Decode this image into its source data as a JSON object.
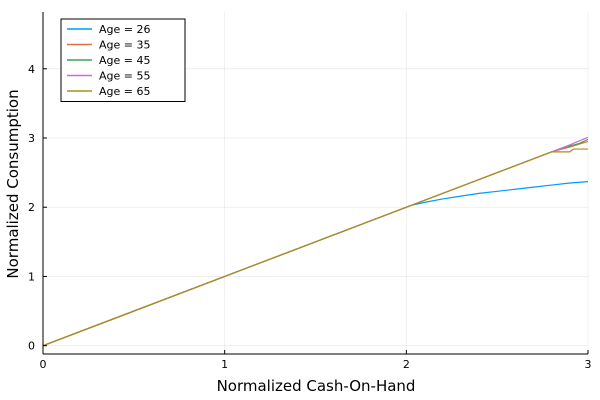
{
  "chart_data": {
    "type": "line",
    "title": "",
    "xlabel": "Normalized Cash-On-Hand",
    "ylabel": "Normalized Consumption",
    "xlim": [
      0,
      3
    ],
    "ylim": [
      -0.12,
      4.82
    ],
    "xticks": [
      0,
      1,
      2,
      3
    ],
    "yticks": [
      0,
      1,
      2,
      3,
      4
    ],
    "grid": true,
    "legend_position": "top-left",
    "series": [
      {
        "name": "Age = 26",
        "color": "#009AFA",
        "x": [
          0,
          2.03,
          2.1,
          2.2,
          2.3,
          2.4,
          2.5,
          2.6,
          2.7,
          2.8,
          2.9,
          3.0
        ],
        "y": [
          0,
          2.03,
          2.07,
          2.12,
          2.16,
          2.2,
          2.23,
          2.26,
          2.29,
          2.32,
          2.35,
          2.37
        ]
      },
      {
        "name": "Age = 35",
        "color": "#E36F47",
        "x": [
          0,
          2.8,
          2.9,
          3.0
        ],
        "y": [
          0,
          2.8,
          2.87,
          2.95
        ]
      },
      {
        "name": "Age = 45",
        "color": "#3EA44E",
        "x": [
          0,
          2.85,
          2.95,
          3.0
        ],
        "y": [
          0,
          2.85,
          2.92,
          2.98
        ]
      },
      {
        "name": "Age = 55",
        "color": "#C271D2",
        "x": [
          0,
          2.88,
          3.0
        ],
        "y": [
          0,
          2.88,
          3.01
        ]
      },
      {
        "name": "Age = 65",
        "color": "#AC8E18",
        "x": [
          0,
          2.8,
          2.9,
          2.92,
          3.0
        ],
        "y": [
          0,
          2.8,
          2.8,
          2.84,
          2.84
        ]
      }
    ]
  }
}
